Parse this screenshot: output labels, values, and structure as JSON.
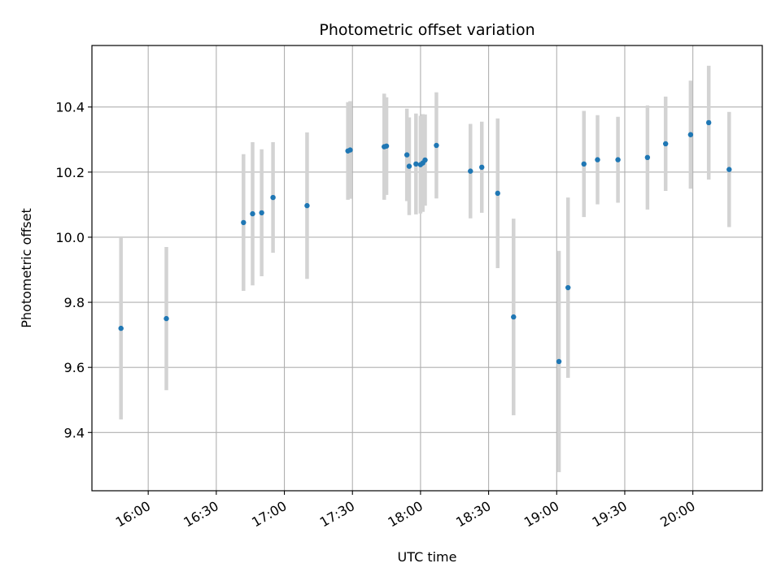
{
  "chart_data": {
    "type": "scatter",
    "title": "Photometric offset variation",
    "xlabel": "UTC time",
    "ylabel": "Photometric offset",
    "x_tick_labels": [
      "16:00",
      "16:30",
      "17:00",
      "17:30",
      "18:00",
      "18:30",
      "19:00",
      "19:30",
      "20:00"
    ],
    "x_tick_minutes": [
      960,
      990,
      1020,
      1050,
      1080,
      1110,
      1140,
      1170,
      1200
    ],
    "xlim_minutes": [
      935.2,
      1230.6
    ],
    "y_ticks": [
      9.4,
      9.6,
      9.8,
      10.0,
      10.2,
      10.4
    ],
    "y_tick_labels": [
      "9.4",
      "9.6",
      "9.8",
      "10.0",
      "10.2",
      "10.4"
    ],
    "ylim": [
      9.221,
      10.589
    ],
    "grid": true,
    "point_color": "#1f77b4",
    "errorbar_color": "#d3d3d3",
    "series": [
      {
        "points": [
          {
            "x": "15:48",
            "y": 9.72,
            "err": 0.28
          },
          {
            "x": "16:08",
            "y": 9.75,
            "err": 0.22
          },
          {
            "x": "16:42",
            "y": 10.045,
            "err": 0.21
          },
          {
            "x": "16:46",
            "y": 10.072,
            "err": 0.22
          },
          {
            "x": "16:50",
            "y": 10.075,
            "err": 0.195
          },
          {
            "x": "16:55",
            "y": 10.122,
            "err": 0.17
          },
          {
            "x": "17:10",
            "y": 10.097,
            "err": 0.225
          },
          {
            "x": "17:28",
            "y": 10.265,
            "err": 0.15
          },
          {
            "x": "17:29",
            "y": 10.268,
            "err": 0.15
          },
          {
            "x": "17:44",
            "y": 10.278,
            "err": 0.163
          },
          {
            "x": "17:45",
            "y": 10.28,
            "err": 0.15
          },
          {
            "x": "17:54",
            "y": 10.253,
            "err": 0.142
          },
          {
            "x": "17:55",
            "y": 10.218,
            "err": 0.15
          },
          {
            "x": "17:58",
            "y": 10.225,
            "err": 0.155
          },
          {
            "x": "18:00",
            "y": 10.223,
            "err": 0.15
          },
          {
            "x": "18:01",
            "y": 10.228,
            "err": 0.15
          },
          {
            "x": "18:02",
            "y": 10.237,
            "err": 0.14
          },
          {
            "x": "18:07",
            "y": 10.282,
            "err": 0.163
          },
          {
            "x": "18:22",
            "y": 10.203,
            "err": 0.145
          },
          {
            "x": "18:27",
            "y": 10.215,
            "err": 0.14
          },
          {
            "x": "18:34",
            "y": 10.135,
            "err": 0.23
          },
          {
            "x": "18:41",
            "y": 9.755,
            "err": 0.302
          },
          {
            "x": "19:01",
            "y": 9.618,
            "err": 0.34
          },
          {
            "x": "19:05",
            "y": 9.845,
            "err": 0.277
          },
          {
            "x": "19:12",
            "y": 10.225,
            "err": 0.163
          },
          {
            "x": "19:18",
            "y": 10.238,
            "err": 0.137
          },
          {
            "x": "19:27",
            "y": 10.238,
            "err": 0.132
          },
          {
            "x": "19:40",
            "y": 10.245,
            "err": 0.16
          },
          {
            "x": "19:48",
            "y": 10.287,
            "err": 0.145
          },
          {
            "x": "19:59",
            "y": 10.315,
            "err": 0.166
          },
          {
            "x": "20:07",
            "y": 10.352,
            "err": 0.175
          },
          {
            "x": "20:16",
            "y": 10.208,
            "err": 0.177
          }
        ]
      }
    ]
  }
}
